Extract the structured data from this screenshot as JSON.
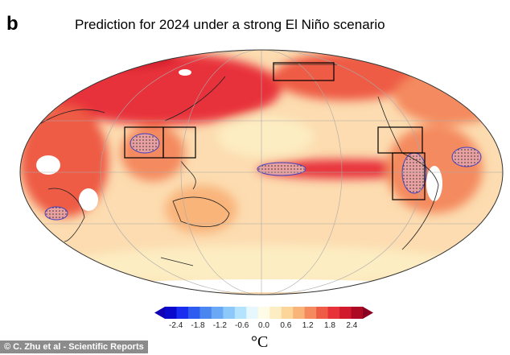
{
  "panel_label": "b",
  "title": "Prediction for 2024 under a strong El Niño scenario",
  "map": {
    "projection": "Mollweide",
    "variable": "temperature anomaly",
    "hatching_note": "stippled regions",
    "boxes": 5
  },
  "colorbar": {
    "unit": "°C",
    "ticks": [
      "-2.4",
      "-1.8",
      "-1.2",
      "-0.6",
      "0.0",
      "0.6",
      "1.2",
      "1.8",
      "2.4"
    ],
    "range": [
      -2.7,
      2.7
    ],
    "colors": [
      "#0a0acc",
      "#1a2ef0",
      "#2f5cf0",
      "#4a86f0",
      "#6aa8f5",
      "#8cc8fa",
      "#b4e4fd",
      "#e6f7fe",
      "#fefbe6",
      "#fdedc2",
      "#fbd59a",
      "#f9b47a",
      "#f48a5e",
      "#ee5c45",
      "#e7323a",
      "#d11a2c",
      "#ad0a24"
    ],
    "under_color": "#1200b4",
    "over_color": "#8a0020"
  },
  "credit": "© C. Zhu et al - Scientific Reports"
}
